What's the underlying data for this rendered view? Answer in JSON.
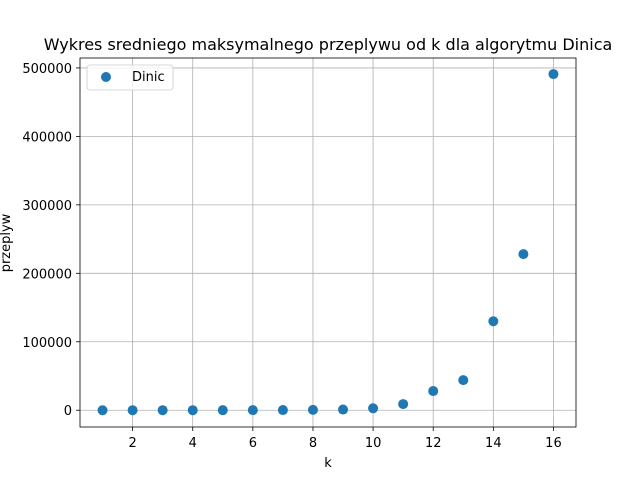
{
  "chart_data": {
    "type": "scatter",
    "title": "Wykres sredniego maksymalnego przeplywu od k dla algorytmu Dinica",
    "xlabel": "k",
    "ylabel": "przeplyw",
    "xlim": [
      0.25,
      16.75
    ],
    "ylim": [
      -24500,
      514500
    ],
    "xticks": [
      2,
      4,
      6,
      8,
      10,
      12,
      14,
      16
    ],
    "yticks": [
      0,
      100000,
      200000,
      300000,
      400000,
      500000
    ],
    "grid": true,
    "legend_position": "upper-left",
    "series": [
      {
        "name": "Dinic",
        "color": "#1f77b4",
        "x": [
          1,
          2,
          3,
          4,
          5,
          6,
          7,
          8,
          9,
          10,
          11,
          12,
          13,
          14,
          15,
          16
        ],
        "y": [
          3,
          8,
          15,
          31,
          62,
          125,
          250,
          500,
          1000,
          2800,
          9000,
          28000,
          44000,
          130000,
          228000,
          491000
        ]
      }
    ]
  }
}
